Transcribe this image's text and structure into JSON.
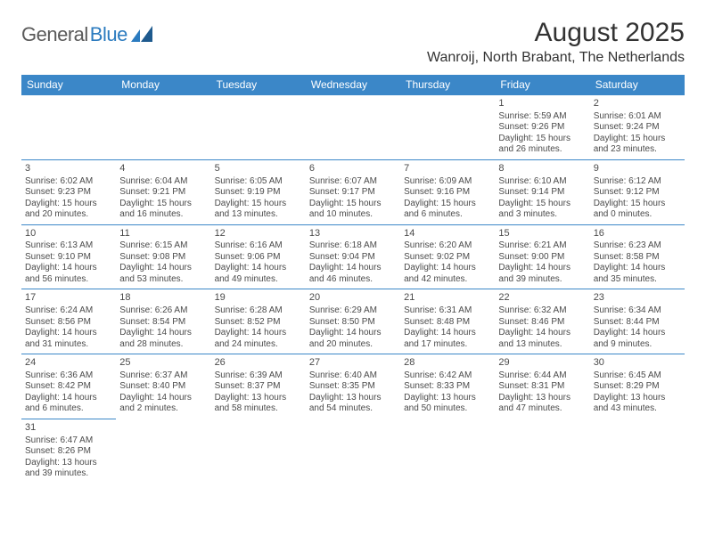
{
  "brand": {
    "general": "General",
    "blue": "Blue"
  },
  "title": "August 2025",
  "location": "Wanroij, North Brabant, The Netherlands",
  "colors": {
    "header_bg": "#3b87c8",
    "header_text": "#ffffff",
    "border": "#3b87c8",
    "text": "#4a4a4a",
    "logo_gray": "#5a5a5a",
    "logo_blue": "#2b7bbf"
  },
  "day_headers": [
    "Sunday",
    "Monday",
    "Tuesday",
    "Wednesday",
    "Thursday",
    "Friday",
    "Saturday"
  ],
  "weeks": [
    [
      null,
      null,
      null,
      null,
      null,
      {
        "n": "1",
        "sr": "Sunrise: 5:59 AM",
        "ss": "Sunset: 9:26 PM",
        "d1": "Daylight: 15 hours",
        "d2": "and 26 minutes."
      },
      {
        "n": "2",
        "sr": "Sunrise: 6:01 AM",
        "ss": "Sunset: 9:24 PM",
        "d1": "Daylight: 15 hours",
        "d2": "and 23 minutes."
      }
    ],
    [
      {
        "n": "3",
        "sr": "Sunrise: 6:02 AM",
        "ss": "Sunset: 9:23 PM",
        "d1": "Daylight: 15 hours",
        "d2": "and 20 minutes."
      },
      {
        "n": "4",
        "sr": "Sunrise: 6:04 AM",
        "ss": "Sunset: 9:21 PM",
        "d1": "Daylight: 15 hours",
        "d2": "and 16 minutes."
      },
      {
        "n": "5",
        "sr": "Sunrise: 6:05 AM",
        "ss": "Sunset: 9:19 PM",
        "d1": "Daylight: 15 hours",
        "d2": "and 13 minutes."
      },
      {
        "n": "6",
        "sr": "Sunrise: 6:07 AM",
        "ss": "Sunset: 9:17 PM",
        "d1": "Daylight: 15 hours",
        "d2": "and 10 minutes."
      },
      {
        "n": "7",
        "sr": "Sunrise: 6:09 AM",
        "ss": "Sunset: 9:16 PM",
        "d1": "Daylight: 15 hours",
        "d2": "and 6 minutes."
      },
      {
        "n": "8",
        "sr": "Sunrise: 6:10 AM",
        "ss": "Sunset: 9:14 PM",
        "d1": "Daylight: 15 hours",
        "d2": "and 3 minutes."
      },
      {
        "n": "9",
        "sr": "Sunrise: 6:12 AM",
        "ss": "Sunset: 9:12 PM",
        "d1": "Daylight: 15 hours",
        "d2": "and 0 minutes."
      }
    ],
    [
      {
        "n": "10",
        "sr": "Sunrise: 6:13 AM",
        "ss": "Sunset: 9:10 PM",
        "d1": "Daylight: 14 hours",
        "d2": "and 56 minutes."
      },
      {
        "n": "11",
        "sr": "Sunrise: 6:15 AM",
        "ss": "Sunset: 9:08 PM",
        "d1": "Daylight: 14 hours",
        "d2": "and 53 minutes."
      },
      {
        "n": "12",
        "sr": "Sunrise: 6:16 AM",
        "ss": "Sunset: 9:06 PM",
        "d1": "Daylight: 14 hours",
        "d2": "and 49 minutes."
      },
      {
        "n": "13",
        "sr": "Sunrise: 6:18 AM",
        "ss": "Sunset: 9:04 PM",
        "d1": "Daylight: 14 hours",
        "d2": "and 46 minutes."
      },
      {
        "n": "14",
        "sr": "Sunrise: 6:20 AM",
        "ss": "Sunset: 9:02 PM",
        "d1": "Daylight: 14 hours",
        "d2": "and 42 minutes."
      },
      {
        "n": "15",
        "sr": "Sunrise: 6:21 AM",
        "ss": "Sunset: 9:00 PM",
        "d1": "Daylight: 14 hours",
        "d2": "and 39 minutes."
      },
      {
        "n": "16",
        "sr": "Sunrise: 6:23 AM",
        "ss": "Sunset: 8:58 PM",
        "d1": "Daylight: 14 hours",
        "d2": "and 35 minutes."
      }
    ],
    [
      {
        "n": "17",
        "sr": "Sunrise: 6:24 AM",
        "ss": "Sunset: 8:56 PM",
        "d1": "Daylight: 14 hours",
        "d2": "and 31 minutes."
      },
      {
        "n": "18",
        "sr": "Sunrise: 6:26 AM",
        "ss": "Sunset: 8:54 PM",
        "d1": "Daylight: 14 hours",
        "d2": "and 28 minutes."
      },
      {
        "n": "19",
        "sr": "Sunrise: 6:28 AM",
        "ss": "Sunset: 8:52 PM",
        "d1": "Daylight: 14 hours",
        "d2": "and 24 minutes."
      },
      {
        "n": "20",
        "sr": "Sunrise: 6:29 AM",
        "ss": "Sunset: 8:50 PM",
        "d1": "Daylight: 14 hours",
        "d2": "and 20 minutes."
      },
      {
        "n": "21",
        "sr": "Sunrise: 6:31 AM",
        "ss": "Sunset: 8:48 PM",
        "d1": "Daylight: 14 hours",
        "d2": "and 17 minutes."
      },
      {
        "n": "22",
        "sr": "Sunrise: 6:32 AM",
        "ss": "Sunset: 8:46 PM",
        "d1": "Daylight: 14 hours",
        "d2": "and 13 minutes."
      },
      {
        "n": "23",
        "sr": "Sunrise: 6:34 AM",
        "ss": "Sunset: 8:44 PM",
        "d1": "Daylight: 14 hours",
        "d2": "and 9 minutes."
      }
    ],
    [
      {
        "n": "24",
        "sr": "Sunrise: 6:36 AM",
        "ss": "Sunset: 8:42 PM",
        "d1": "Daylight: 14 hours",
        "d2": "and 6 minutes."
      },
      {
        "n": "25",
        "sr": "Sunrise: 6:37 AM",
        "ss": "Sunset: 8:40 PM",
        "d1": "Daylight: 14 hours",
        "d2": "and 2 minutes."
      },
      {
        "n": "26",
        "sr": "Sunrise: 6:39 AM",
        "ss": "Sunset: 8:37 PM",
        "d1": "Daylight: 13 hours",
        "d2": "and 58 minutes."
      },
      {
        "n": "27",
        "sr": "Sunrise: 6:40 AM",
        "ss": "Sunset: 8:35 PM",
        "d1": "Daylight: 13 hours",
        "d2": "and 54 minutes."
      },
      {
        "n": "28",
        "sr": "Sunrise: 6:42 AM",
        "ss": "Sunset: 8:33 PM",
        "d1": "Daylight: 13 hours",
        "d2": "and 50 minutes."
      },
      {
        "n": "29",
        "sr": "Sunrise: 6:44 AM",
        "ss": "Sunset: 8:31 PM",
        "d1": "Daylight: 13 hours",
        "d2": "and 47 minutes."
      },
      {
        "n": "30",
        "sr": "Sunrise: 6:45 AM",
        "ss": "Sunset: 8:29 PM",
        "d1": "Daylight: 13 hours",
        "d2": "and 43 minutes."
      }
    ],
    [
      {
        "n": "31",
        "sr": "Sunrise: 6:47 AM",
        "ss": "Sunset: 8:26 PM",
        "d1": "Daylight: 13 hours",
        "d2": "and 39 minutes."
      },
      null,
      null,
      null,
      null,
      null,
      null
    ]
  ]
}
